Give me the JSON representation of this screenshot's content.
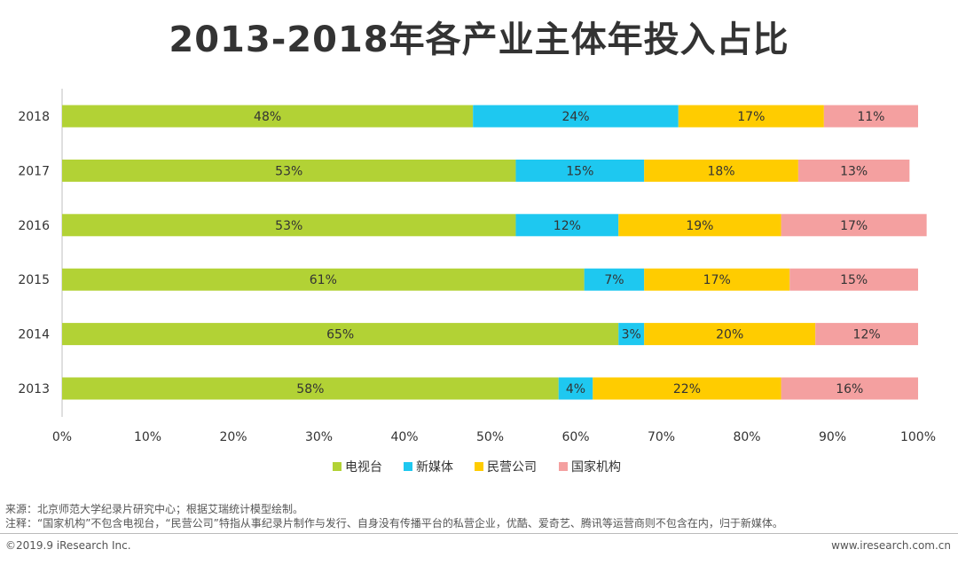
{
  "title": "2013-2018年各产业主体年投入占比",
  "chart_data": {
    "type": "bar",
    "orientation": "horizontal",
    "stacked": true,
    "categories": [
      "2018",
      "2017",
      "2016",
      "2015",
      "2014",
      "2013"
    ],
    "series": [
      {
        "name": "电视台",
        "color": "#b2d235",
        "values": [
          48,
          53,
          53,
          61,
          65,
          58
        ],
        "labels": [
          "48%",
          "53%",
          "53%",
          "61%",
          "65%",
          "58%"
        ]
      },
      {
        "name": "新媒体",
        "color": "#1ec8f0",
        "values": [
          24,
          15,
          12,
          7,
          3,
          4
        ],
        "labels": [
          "24%",
          "15%",
          "12%",
          "7%",
          "3%",
          "4%"
        ]
      },
      {
        "name": "民营公司",
        "color": "#ffcc00",
        "values": [
          17,
          18,
          19,
          17,
          20,
          22
        ],
        "labels": [
          "17%",
          "18%",
          "19%",
          "17%",
          "20%",
          "22%"
        ]
      },
      {
        "name": "国家机构",
        "color": "#f4a0a0",
        "values": [
          11,
          13,
          17,
          15,
          12,
          16
        ],
        "labels": [
          "11%",
          "13%",
          "17%",
          "15%",
          "12%",
          "16%"
        ]
      }
    ],
    "xlim": [
      0,
      100
    ],
    "xticks": [
      "0%",
      "10%",
      "20%",
      "30%",
      "40%",
      "50%",
      "60%",
      "70%",
      "80%",
      "90%",
      "100%"
    ],
    "grid": false,
    "legend_position": "bottom"
  },
  "notes": {
    "source": "来源：北京师范大学纪录片研究中心；根据艾瑞统计模型绘制。",
    "note": "注释：“国家机构”不包含电视台，“民营公司”特指从事纪录片制作与发行、自身没有传播平台的私营企业，优酷、爱奇艺、腾讯等运营商则不包含在内，归于新媒体。"
  },
  "footer": {
    "copyright": "©2019.9 iResearch Inc.",
    "site": "www.iresearch.com.cn"
  }
}
